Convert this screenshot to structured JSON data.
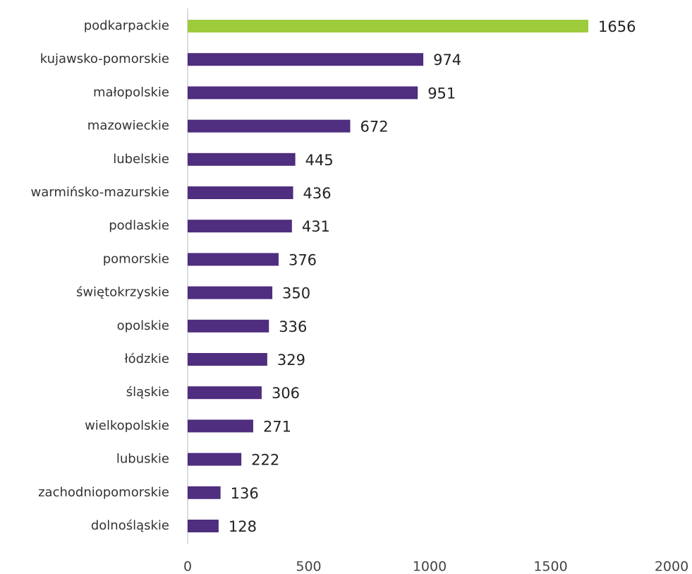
{
  "chart_data": {
    "type": "bar",
    "orientation": "horizontal",
    "categories": [
      "podkarpackie",
      "kujawsko-pomorskie",
      "małopolskie",
      "mazowieckie",
      "lubelskie",
      "warmińsko-mazurskie",
      "podlaskie",
      "pomorskie",
      "świętokrzyskie",
      "opolskie",
      "łódzkie",
      "śląskie",
      "wielkopolskie",
      "lubuskie",
      "zachodniopomorskie",
      "dolnośląskie"
    ],
    "values": [
      1656,
      974,
      951,
      672,
      445,
      436,
      431,
      376,
      350,
      336,
      329,
      306,
      271,
      222,
      136,
      128
    ],
    "colors": [
      "#9dcb3c",
      "#4f2d7f",
      "#4f2d7f",
      "#4f2d7f",
      "#4f2d7f",
      "#4f2d7f",
      "#4f2d7f",
      "#4f2d7f",
      "#4f2d7f",
      "#4f2d7f",
      "#4f2d7f",
      "#4f2d7f",
      "#4f2d7f",
      "#4f2d7f",
      "#4f2d7f",
      "#4f2d7f"
    ],
    "xlim": [
      0,
      2000
    ],
    "xticks": [
      0,
      500,
      1000,
      1500,
      2000
    ],
    "grid": false
  }
}
